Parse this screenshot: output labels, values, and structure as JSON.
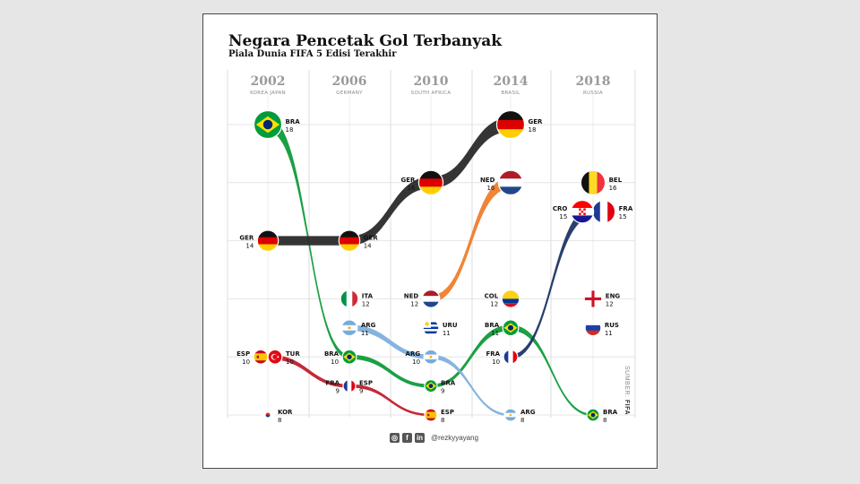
{
  "title": "Negara Pencetak Gol Terbanyak",
  "subtitle": "Piala Dunia  FIFA 5 Edisi Terakhir",
  "source": {
    "label": "SUMBER:",
    "name": "FIFA"
  },
  "footer": {
    "handle": "@rezkyyayang",
    "icons": [
      "instagram-icon",
      "facebook-icon",
      "linkedin-icon"
    ]
  },
  "chart_data": {
    "type": "bump",
    "editions": [
      {
        "year": "2002",
        "host": "KOREA JAPAN"
      },
      {
        "year": "2006",
        "host": "GERMANY"
      },
      {
        "year": "2010",
        "host": "SOUTH AFRICA"
      },
      {
        "year": "2014",
        "host": "BRASIL"
      },
      {
        "year": "2018",
        "host": "RUSSIA"
      }
    ],
    "teams": [
      {
        "code": "BRA",
        "flag": "bra",
        "points": [
          [
            0,
            18
          ],
          [
            1,
            10
          ],
          [
            2,
            9
          ],
          [
            3,
            11
          ],
          [
            4,
            8
          ]
        ]
      },
      {
        "code": "GER",
        "flag": "ger",
        "points": [
          [
            0,
            14
          ],
          [
            1,
            14
          ],
          [
            2,
            16
          ],
          [
            3,
            18
          ]
        ]
      },
      {
        "code": "ESP",
        "flag": "esp",
        "points": [
          [
            0,
            10
          ],
          [
            1,
            9
          ],
          [
            2,
            8
          ]
        ]
      },
      {
        "code": "ARG",
        "flag": "arg",
        "points": [
          [
            1,
            11
          ],
          [
            2,
            10
          ],
          [
            3,
            8
          ]
        ]
      },
      {
        "code": "NED",
        "flag": "ned",
        "points": [
          [
            2,
            12
          ],
          [
            3,
            16
          ]
        ]
      },
      {
        "code": "FRA",
        "flag": "fra",
        "points": [
          [
            1,
            9
          ]
        ]
      },
      {
        "code": "FRA",
        "flag": "fra",
        "points": [
          [
            3,
            10
          ],
          [
            4,
            15
          ]
        ]
      },
      {
        "code": "TUR",
        "flag": "tur",
        "points": [
          [
            0,
            10
          ]
        ]
      },
      {
        "code": "KOR",
        "flag": "kor",
        "points": [
          [
            0,
            8
          ]
        ]
      },
      {
        "code": "ITA",
        "flag": "ita",
        "points": [
          [
            1,
            12
          ]
        ]
      },
      {
        "code": "URU",
        "flag": "uru",
        "points": [
          [
            2,
            11
          ]
        ]
      },
      {
        "code": "COL",
        "flag": "col",
        "points": [
          [
            3,
            12
          ]
        ]
      },
      {
        "code": "BEL",
        "flag": "bel",
        "points": [
          [
            4,
            16
          ]
        ]
      },
      {
        "code": "CRO",
        "flag": "cro",
        "points": [
          [
            4,
            15
          ]
        ]
      },
      {
        "code": "ENG",
        "flag": "eng",
        "points": [
          [
            4,
            12
          ]
        ]
      },
      {
        "code": "RUS",
        "flag": "rus",
        "points": [
          [
            4,
            11
          ]
        ]
      }
    ],
    "colors": {
      "BRA": "#0f9b3a",
      "GER": "#2a2a2a",
      "ESP": "#c0202c",
      "ARG": "#7fb0dc",
      "NED": "#ef7d2c",
      "FRA": "#1f3566"
    }
  }
}
